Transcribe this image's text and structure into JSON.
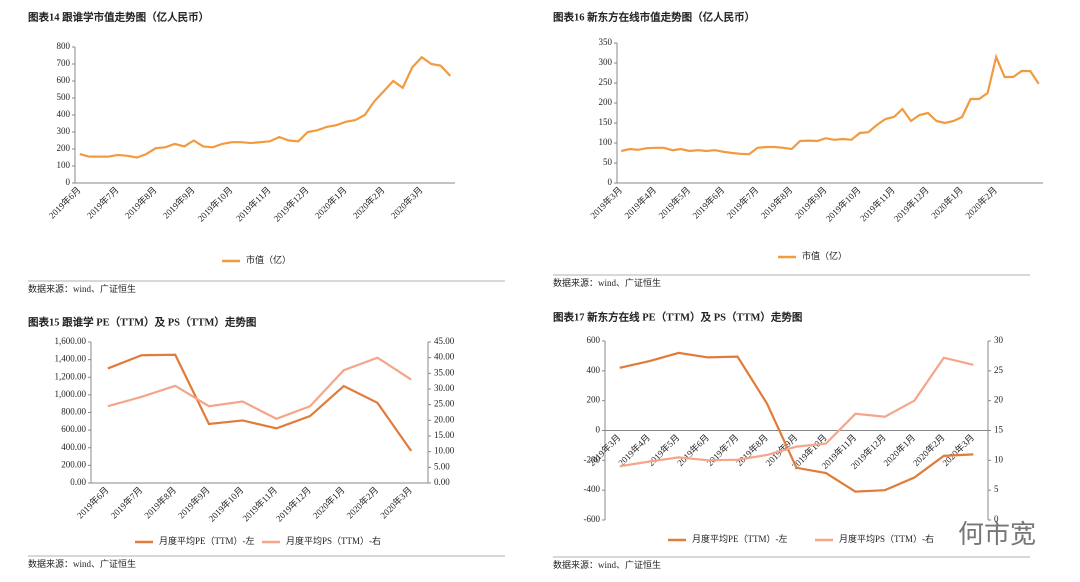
{
  "chart_data": [
    {
      "type": "line",
      "title": "图表14 跟谁学市值走势图（亿人民币）",
      "source": "数据来源：wind、广证恒生",
      "categories": [
        "2019年6月",
        null,
        null,
        null,
        "2019年7月",
        null,
        null,
        null,
        "2019年8月",
        null,
        null,
        null,
        "2019年9月",
        null,
        null,
        null,
        "2019年10月",
        null,
        null,
        null,
        "2019年11月",
        null,
        null,
        null,
        "2019年12月",
        null,
        null,
        null,
        "2020年1月",
        null,
        null,
        null,
        "2020年2月",
        null,
        null,
        null,
        "2020年3月",
        null,
        null,
        null
      ],
      "series": [
        {
          "name": "市值（亿）",
          "color": "#f29a3f",
          "values": [
            170,
            155,
            155,
            155,
            165,
            160,
            150,
            170,
            205,
            210,
            230,
            215,
            250,
            215,
            210,
            230,
            240,
            240,
            235,
            240,
            245,
            270,
            250,
            245,
            300,
            310,
            330,
            340,
            360,
            370,
            400,
            480,
            540,
            600,
            560,
            680,
            740,
            700,
            690,
            630
          ]
        }
      ],
      "ylim": [
        0,
        800
      ],
      "yticks": [
        0,
        100,
        200,
        300,
        400,
        500,
        600,
        700,
        800
      ],
      "legend": "bottom"
    },
    {
      "type": "line",
      "title": "图表16 新东方在线市值走势图（亿人民币）",
      "source": "数据来源：wind、广证恒生",
      "categories": [
        "2019年3月",
        null,
        null,
        null,
        "2019年4月",
        null,
        null,
        null,
        "2019年5月",
        null,
        null,
        null,
        "2019年6月",
        null,
        null,
        null,
        "2019年7月",
        null,
        null,
        null,
        "2019年8月",
        null,
        null,
        null,
        "2019年9月",
        null,
        null,
        null,
        "2019年10月",
        null,
        null,
        null,
        "2019年11月",
        null,
        null,
        null,
        "2019年12月",
        null,
        null,
        null,
        "2020年1月",
        null,
        null,
        null,
        "2020年2月",
        null,
        null,
        null,
        null,
        null
      ],
      "series": [
        {
          "name": "市值（亿）",
          "color": "#f29a3f",
          "values": [
            80,
            85,
            83,
            87,
            88,
            88,
            82,
            85,
            80,
            82,
            80,
            82,
            78,
            75,
            73,
            72,
            88,
            90,
            90,
            88,
            85,
            105,
            106,
            105,
            112,
            108,
            110,
            108,
            125,
            127,
            145,
            160,
            165,
            185,
            155,
            170,
            175,
            155,
            150,
            155,
            165,
            210,
            210,
            225,
            315,
            265,
            265,
            280,
            280,
            248
          ]
        }
      ],
      "ylim": [
        0,
        350
      ],
      "yticks": [
        0,
        50,
        100,
        150,
        200,
        250,
        300,
        350
      ],
      "legend": "bottom"
    },
    {
      "type": "line",
      "title": "图表15 跟谁学 PE（TTM）及 PS（TTM）走势图",
      "source": "数据来源：wind、广证恒生",
      "categories": [
        "2019年6月",
        "2019年7月",
        "2019年8月",
        "2019年9月",
        "2019年10月",
        "2019年11月",
        "2019年12月",
        "2020年1月",
        "2020年2月",
        "2020年3月"
      ],
      "series": [
        {
          "name": "月度平均PE（TTM）-左",
          "color": "#e07b39",
          "values": [
            1300,
            1450,
            1455,
            670,
            710,
            620,
            760,
            1100,
            910,
            365
          ]
        },
        {
          "name": "月度平均PS（TTM）-右",
          "color": "#f4a58a",
          "axis": "y2",
          "values": [
            24.5,
            27.5,
            31,
            24.5,
            26,
            20.5,
            24.5,
            36,
            40,
            33
          ]
        }
      ],
      "ylim": [
        0,
        1600
      ],
      "yticks": [
        {
          "value": 0,
          "label": "0.00"
        },
        {
          "value": 200,
          "label": "200.00"
        },
        {
          "value": 400,
          "label": "400.00"
        },
        {
          "value": 600,
          "label": "600.00"
        },
        {
          "value": 800,
          "label": "800.00"
        },
        {
          "value": 1000,
          "label": "1,000.00"
        },
        {
          "value": 1200,
          "label": "1,200.00"
        },
        {
          "value": 1400,
          "label": "1,400.00"
        },
        {
          "value": 1600,
          "label": "1,600.00"
        }
      ],
      "y2lim": [
        0,
        45
      ],
      "y2ticks": [
        {
          "value": 0,
          "label": "0.00"
        },
        {
          "value": 5,
          "label": "5.00"
        },
        {
          "value": 10,
          "label": "10.00"
        },
        {
          "value": 15,
          "label": "15.00"
        },
        {
          "value": 20,
          "label": "20.00"
        },
        {
          "value": 25,
          "label": "25.00"
        },
        {
          "value": 30,
          "label": "30.00"
        },
        {
          "value": 35,
          "label": "35.00"
        },
        {
          "value": 40,
          "label": "40.00"
        },
        {
          "value": 45,
          "label": "45.00"
        }
      ],
      "legend": "bottom"
    },
    {
      "type": "line",
      "title": "图表17 新东方在线 PE（TTM）及 PS（TTM）走势图",
      "source": "数据来源：wind、广证恒生",
      "categories": [
        "2019年3月",
        "2019年4月",
        "2019年5月",
        "2019年6月",
        "2019年7月",
        "2019年8月",
        "2019年9月",
        "2019年10月",
        "2019年11月",
        "2019年12月",
        "2020年1月",
        "2020年2月",
        "2020年3月"
      ],
      "series": [
        {
          "name": "月度平均PE（TTM）-左",
          "color": "#e07b39",
          "values": [
            420,
            465,
            520,
            490,
            495,
            180,
            -250,
            -285,
            -410,
            -400,
            -315,
            -170,
            -160
          ]
        },
        {
          "name": "月度平均PS（TTM）-右",
          "color": "#f4a58a",
          "axis": "y2",
          "values": [
            9,
            9.8,
            10.5,
            10,
            10.1,
            10.9,
            12.3,
            12.8,
            17.8,
            17.3,
            20,
            27.2,
            26
          ]
        }
      ],
      "ylim": [
        -600,
        600
      ],
      "yticks": [
        -600,
        -400,
        -200,
        0,
        200,
        400,
        600
      ],
      "y2lim": [
        0,
        30
      ],
      "y2ticks": [
        0,
        5,
        10,
        15,
        20,
        25,
        30
      ],
      "legend": "bottom"
    }
  ],
  "watermark": "何市宽"
}
